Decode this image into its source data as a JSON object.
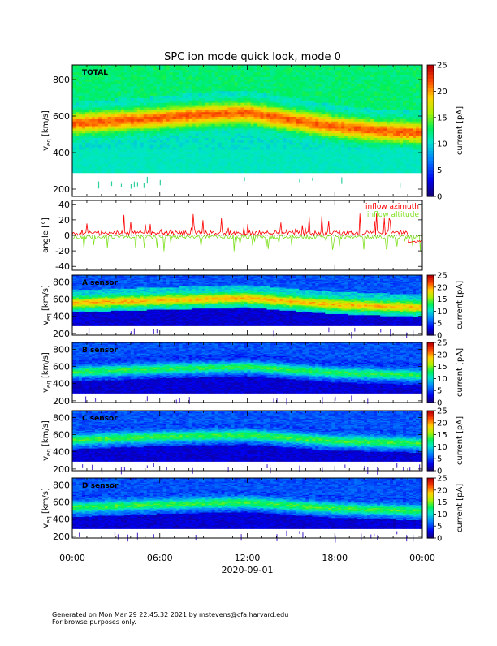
{
  "title": "SPC ion mode quick look, mode 0",
  "footer": {
    "line1": "Generated on Mon Mar 29 22:45:32 2021 by mstevens@cfa.harvard.edu",
    "line2": "For browse purposes only."
  },
  "x_axis": {
    "date_label": "2020-09-01",
    "tick_labels": [
      "00:00",
      "06:00",
      "12:00",
      "18:00",
      "00:00"
    ],
    "range_hours": [
      0,
      24
    ]
  },
  "colors": {
    "azimuth": "#ff0000",
    "altitude": "#80e020"
  },
  "chart_data": [
    {
      "type": "heatmap",
      "panel": "total",
      "panel_label": "TOTAL",
      "ylabel_main": "v",
      "ylabel_sub": "eq",
      "ylabel_unit": "[km/s]",
      "ylim": [
        160,
        880
      ],
      "y_ticks": [
        200,
        400,
        600,
        800
      ],
      "colorbar_label": "current [pA]",
      "colorbar_range": [
        0,
        25
      ],
      "colorbar_ticks": [
        0,
        5,
        10,
        15,
        20,
        25
      ],
      "data_range_vy": [
        290,
        880
      ],
      "ridge_speed_kms": [
        {
          "hour": 0,
          "v": 560
        },
        {
          "hour": 3,
          "v": 575
        },
        {
          "hour": 6,
          "v": 590
        },
        {
          "hour": 9,
          "v": 610
        },
        {
          "hour": 12,
          "v": 620
        },
        {
          "hour": 15,
          "v": 580
        },
        {
          "hour": 18,
          "v": 545
        },
        {
          "hour": 21,
          "v": 520
        },
        {
          "hour": 24,
          "v": 510
        }
      ],
      "peak_current_pA": 22
    },
    {
      "type": "line",
      "panel": "angle",
      "ylabel": "angle [°]",
      "ylim": [
        -45,
        45
      ],
      "y_ticks": [
        -40,
        -20,
        0,
        20,
        40
      ],
      "legend": [
        "inflow azimuth",
        "inflow altitude"
      ],
      "legend_placement": "top-right",
      "series": [
        {
          "name": "inflow azimuth",
          "mean_deg": 3,
          "spike_max_deg": 28,
          "end_value_deg": -8
        },
        {
          "name": "inflow altitude",
          "mean_deg": -2,
          "spike_min_deg": -22
        }
      ]
    },
    {
      "type": "heatmap",
      "panel": "A",
      "panel_label": "A sensor",
      "ylabel_main": "v",
      "ylabel_sub": "eq",
      "ylabel_unit": "[km/s]",
      "ylim": [
        180,
        880
      ],
      "y_ticks": [
        200,
        400,
        600,
        800
      ],
      "colorbar_label": "current [pA]",
      "colorbar_range": [
        0,
        25
      ],
      "colorbar_ticks": [
        0,
        5,
        10,
        15,
        20,
        25
      ],
      "ridge_speed_kms": [
        {
          "hour": 0,
          "v": 560
        },
        {
          "hour": 6,
          "v": 590
        },
        {
          "hour": 12,
          "v": 615
        },
        {
          "hour": 18,
          "v": 540
        },
        {
          "hour": 24,
          "v": 505
        }
      ],
      "peak_current_pA": 9
    },
    {
      "type": "heatmap",
      "panel": "B",
      "panel_label": "B sensor",
      "ylabel_main": "v",
      "ylabel_sub": "eq",
      "ylabel_unit": "[km/s]",
      "ylim": [
        180,
        880
      ],
      "y_ticks": [
        200,
        400,
        600,
        800
      ],
      "colorbar_label": "current [pA]",
      "colorbar_range": [
        0,
        25
      ],
      "colorbar_ticks": [
        0,
        5,
        10,
        15,
        20,
        25
      ],
      "ridge_speed_kms": [
        {
          "hour": 0,
          "v": 540
        },
        {
          "hour": 6,
          "v": 575
        },
        {
          "hour": 12,
          "v": 600
        },
        {
          "hour": 18,
          "v": 530
        },
        {
          "hour": 24,
          "v": 500
        }
      ],
      "peak_current_pA": 8
    },
    {
      "type": "heatmap",
      "panel": "C",
      "panel_label": "C sensor",
      "ylabel_main": "v",
      "ylabel_sub": "eq",
      "ylabel_unit": "[km/s]",
      "ylim": [
        180,
        880
      ],
      "y_ticks": [
        200,
        400,
        600,
        800
      ],
      "colorbar_label": "current [pA]",
      "colorbar_range": [
        0,
        25
      ],
      "colorbar_ticks": [
        0,
        5,
        10,
        15,
        20,
        25
      ],
      "ridge_speed_kms": [
        {
          "hour": 0,
          "v": 545
        },
        {
          "hour": 6,
          "v": 580
        },
        {
          "hour": 12,
          "v": 600
        },
        {
          "hour": 18,
          "v": 530
        },
        {
          "hour": 24,
          "v": 505
        }
      ],
      "peak_current_pA": 8
    },
    {
      "type": "heatmap",
      "panel": "D",
      "panel_label": "D sensor",
      "ylabel_main": "v",
      "ylabel_sub": "eq",
      "ylabel_unit": "[km/s]",
      "ylim": [
        180,
        880
      ],
      "y_ticks": [
        200,
        400,
        600,
        800
      ],
      "colorbar_label": "current [pA]",
      "colorbar_range": [
        0,
        25
      ],
      "colorbar_ticks": [
        0,
        5,
        10,
        15,
        20,
        25
      ],
      "ridge_speed_kms": [
        {
          "hour": 0,
          "v": 540
        },
        {
          "hour": 6,
          "v": 575
        },
        {
          "hour": 12,
          "v": 600
        },
        {
          "hour": 18,
          "v": 530
        },
        {
          "hour": 24,
          "v": 500
        }
      ],
      "peak_current_pA": 8
    }
  ]
}
